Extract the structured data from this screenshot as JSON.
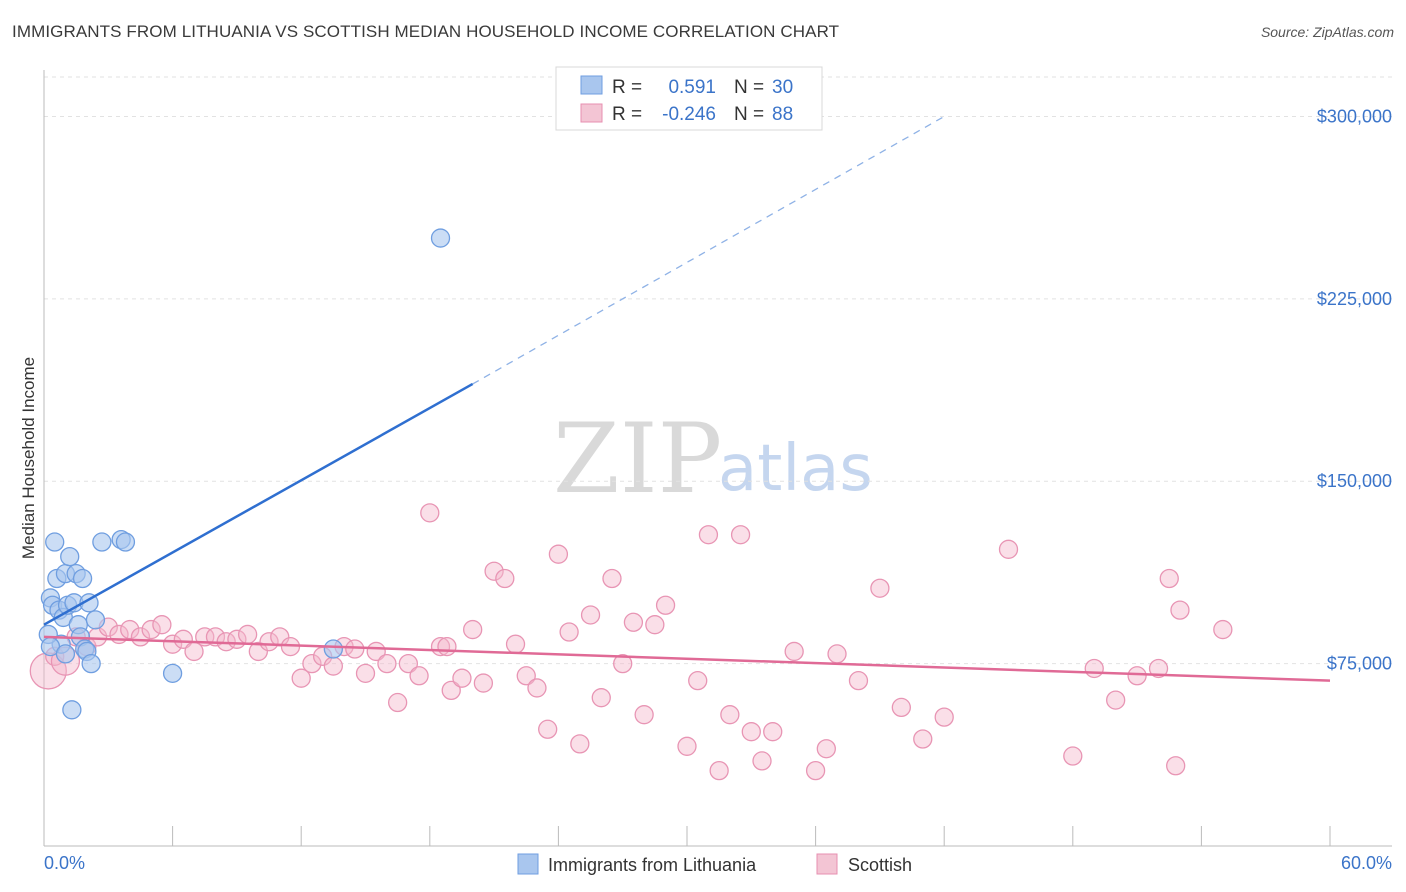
{
  "title": "IMMIGRANTS FROM LITHUANIA VS SCOTTISH MEDIAN HOUSEHOLD INCOME CORRELATION CHART",
  "source": "Source: ZipAtlas.com",
  "watermark": {
    "zip": "ZIP",
    "atlas": "atlas"
  },
  "colors": {
    "blue": "#2f6fd0",
    "blue_fill": "#a9c6ee",
    "pink": "#e06a96",
    "pink_fill": "#f3b9cc",
    "axis_text": "#3b74c9"
  },
  "legend": {
    "rows": [
      {
        "r_label": "R =",
        "r_value": "0.591",
        "n_label": "N =",
        "n_value": "30"
      },
      {
        "r_label": "R =",
        "r_value": "-0.246",
        "n_label": "N =",
        "n_value": "88"
      }
    ]
  },
  "bottom_legend": [
    "Immigrants from Lithuania",
    "Scottish"
  ],
  "chart_data": {
    "type": "scatter",
    "title": "IMMIGRANTS FROM LITHUANIA VS SCOTTISH MEDIAN HOUSEHOLD INCOME CORRELATION CHART",
    "xlabel": "",
    "ylabel": "Median Household Income",
    "xlim": [
      0,
      60
    ],
    "ylim": [
      0,
      315000
    ],
    "x_tick_labels": [
      "0.0%",
      "60.0%"
    ],
    "y_ticks": [
      75000,
      150000,
      225000,
      300000
    ],
    "y_tick_labels": [
      "$75,000",
      "$150,000",
      "$225,000",
      "$300,000"
    ],
    "grid": "horizontal dashed",
    "legend_position": "top-center",
    "series": [
      {
        "name": "Immigrants from Lithuania",
        "r": 0.591,
        "n": 30,
        "trend": {
          "x": [
            0,
            20
          ],
          "y": [
            91000,
            190000
          ],
          "dashed_to": [
            42,
            300000
          ]
        },
        "points": [
          [
            0.3,
            102000
          ],
          [
            0.4,
            99000
          ],
          [
            0.5,
            125000
          ],
          [
            0.6,
            110000
          ],
          [
            0.7,
            97000
          ],
          [
            0.8,
            83000
          ],
          [
            0.9,
            94000
          ],
          [
            1.0,
            112000
          ],
          [
            1.1,
            99000
          ],
          [
            1.2,
            119000
          ],
          [
            1.3,
            56000
          ],
          [
            1.4,
            100000
          ],
          [
            1.5,
            112000
          ],
          [
            1.6,
            91000
          ],
          [
            1.7,
            86000
          ],
          [
            1.8,
            110000
          ],
          [
            1.9,
            81000
          ],
          [
            2.0,
            80000
          ],
          [
            2.1,
            100000
          ],
          [
            2.2,
            75000
          ],
          [
            2.4,
            93000
          ],
          [
            2.7,
            125000
          ],
          [
            3.6,
            126000
          ],
          [
            3.8,
            125000
          ],
          [
            6.0,
            71000
          ],
          [
            13.5,
            81000
          ],
          [
            18.5,
            250000
          ],
          [
            0.2,
            87000
          ],
          [
            0.3,
            82000
          ],
          [
            1.0,
            79000
          ]
        ]
      },
      {
        "name": "Scottish",
        "r": -0.246,
        "n": 88,
        "trend": {
          "x": [
            0,
            60
          ],
          "y": [
            86000,
            68000
          ]
        },
        "points": [
          [
            0.2,
            72000
          ],
          [
            0.5,
            78000
          ],
          [
            1.0,
            76000
          ],
          [
            1.5,
            86000
          ],
          [
            2.0,
            82000
          ],
          [
            2.5,
            86000
          ],
          [
            3.0,
            90000
          ],
          [
            3.5,
            87000
          ],
          [
            4.0,
            89000
          ],
          [
            4.5,
            86000
          ],
          [
            5.0,
            89000
          ],
          [
            5.5,
            91000
          ],
          [
            6.0,
            83000
          ],
          [
            6.5,
            85000
          ],
          [
            7.0,
            80000
          ],
          [
            7.5,
            86000
          ],
          [
            8.0,
            86000
          ],
          [
            8.5,
            84000
          ],
          [
            9.0,
            85000
          ],
          [
            9.5,
            87000
          ],
          [
            10.0,
            80000
          ],
          [
            10.5,
            84000
          ],
          [
            11.0,
            86000
          ],
          [
            11.5,
            82000
          ],
          [
            12.0,
            69000
          ],
          [
            12.5,
            75000
          ],
          [
            13.0,
            78000
          ],
          [
            13.5,
            74000
          ],
          [
            14.0,
            82000
          ],
          [
            14.5,
            81000
          ],
          [
            15.0,
            71000
          ],
          [
            15.5,
            80000
          ],
          [
            16.0,
            75000
          ],
          [
            16.5,
            59000
          ],
          [
            17.0,
            75000
          ],
          [
            17.5,
            70000
          ],
          [
            18.0,
            137000
          ],
          [
            18.5,
            82000
          ],
          [
            18.8,
            82000
          ],
          [
            19.0,
            64000
          ],
          [
            19.5,
            69000
          ],
          [
            20.0,
            89000
          ],
          [
            20.5,
            67000
          ],
          [
            21.0,
            113000
          ],
          [
            21.5,
            110000
          ],
          [
            22.0,
            83000
          ],
          [
            22.5,
            70000
          ],
          [
            23.0,
            65000
          ],
          [
            23.5,
            48000
          ],
          [
            24.0,
            120000
          ],
          [
            24.5,
            88000
          ],
          [
            25.0,
            42000
          ],
          [
            25.5,
            95000
          ],
          [
            26.0,
            61000
          ],
          [
            26.5,
            110000
          ],
          [
            27.0,
            75000
          ],
          [
            27.5,
            92000
          ],
          [
            28.0,
            54000
          ],
          [
            28.5,
            91000
          ],
          [
            29.0,
            99000
          ],
          [
            30.0,
            41000
          ],
          [
            30.5,
            68000
          ],
          [
            31.0,
            128000
          ],
          [
            31.5,
            31000
          ],
          [
            32.0,
            54000
          ],
          [
            32.5,
            128000
          ],
          [
            33.0,
            47000
          ],
          [
            33.5,
            35000
          ],
          [
            34.0,
            47000
          ],
          [
            35.0,
            80000
          ],
          [
            36.0,
            31000
          ],
          [
            36.5,
            40000
          ],
          [
            37.0,
            79000
          ],
          [
            38.0,
            68000
          ],
          [
            39.0,
            106000
          ],
          [
            40.0,
            57000
          ],
          [
            41.0,
            44000
          ],
          [
            42.0,
            53000
          ],
          [
            45.0,
            122000
          ],
          [
            48.0,
            37000
          ],
          [
            49.0,
            73000
          ],
          [
            50.0,
            60000
          ],
          [
            51.0,
            70000
          ],
          [
            52.0,
            73000
          ],
          [
            52.5,
            110000
          ],
          [
            52.8,
            33000
          ],
          [
            53.0,
            97000
          ],
          [
            55.0,
            89000
          ]
        ]
      }
    ]
  }
}
